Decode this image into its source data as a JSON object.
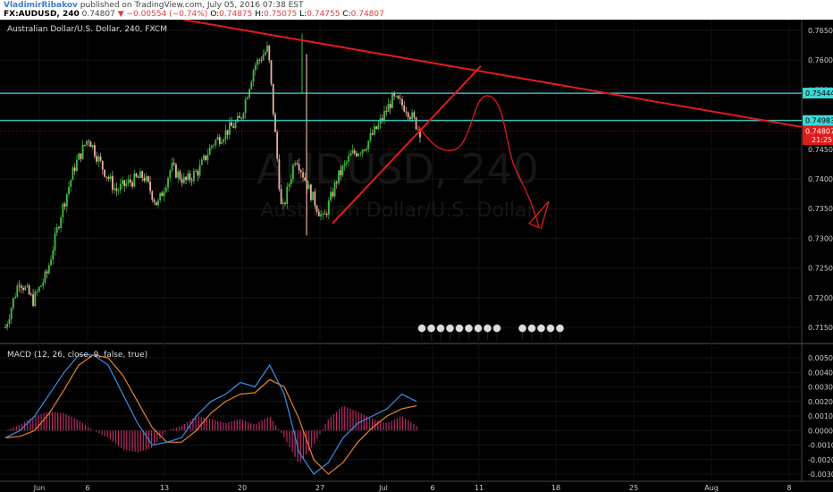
{
  "header": {
    "user": "VladimirRibakov",
    "published": "published on TradingView.com, July 05, 2016 07:38 EST",
    "symbol": "FX:AUDUSD, 240",
    "last": "0.74807",
    "change_arrow": "▼",
    "change": "−0.00554 (−0.74%)",
    "o_label": "O:",
    "o": "0.74875",
    "h_label": "H:",
    "h": "0.75075",
    "l_label": "L:",
    "l": "0.74755",
    "c_label": "C:",
    "c": "0.74807"
  },
  "chart_title": "Australian Dollar/U.S. Dollar, 240, FXCM",
  "macd_title": "MACD (12, 26, close, 9, false, true)",
  "watermark": {
    "big": "AUDUSD, 240",
    "small": "Australian Dollar/U.S. Dollar"
  },
  "colors": {
    "bg": "#000000",
    "up": "#3fbf3f",
    "down": "#e8b0a0",
    "hline": "#3dd9d6",
    "drawing": "#e31b1b",
    "macd": "#3b8fe8",
    "signal": "#e8822d",
    "hist": "#c0286a"
  },
  "chart_data": [
    {
      "type": "candlestick",
      "title": "Australian Dollar/U.S. Dollar, 240, FXCM",
      "ylim": [
        0.7125,
        0.7665
      ],
      "y_ticks": [
        "0.76500",
        "0.76000",
        "0.75500",
        "0.75000",
        "0.74500",
        "0.74000",
        "0.73500",
        "0.73000",
        "0.72500",
        "0.72000",
        "0.71500"
      ],
      "x_ticks": [
        "Jun",
        "6",
        "13",
        "20",
        "27",
        "Jul",
        "6",
        "11",
        "18",
        "25",
        "Aug",
        "8"
      ],
      "close_path": [
        [
          "Jun",
          0.715
        ],
        [
          "Jun 3",
          0.723
        ],
        [
          "Jun 4",
          0.7195
        ],
        [
          "6",
          0.724
        ],
        [
          "Jun 7",
          0.734
        ],
        [
          "Jun 8",
          0.742
        ],
        [
          "Jun 9",
          0.747
        ],
        [
          "Jun 10",
          0.742
        ],
        [
          "Jun 11",
          0.738
        ],
        [
          "13",
          0.7395
        ],
        [
          "Jun 14",
          0.7405
        ],
        [
          "Jun 15",
          0.7355
        ],
        [
          "Jun 16",
          0.742
        ],
        [
          "Jun 17",
          0.7395
        ],
        [
          "Jun 18",
          0.7415
        ],
        [
          "20",
          0.746
        ],
        [
          "Jun 21",
          0.748
        ],
        [
          "Jun 22",
          0.75
        ],
        [
          "Jun 23",
          0.759
        ],
        [
          "Jun 24",
          0.762
        ],
        [
          "Jun 24b",
          0.734
        ],
        [
          "Jun 25",
          0.744
        ],
        [
          "Jun 26",
          0.738
        ],
        [
          "27",
          0.733
        ],
        [
          "Jun 28",
          0.74
        ],
        [
          "Jun 29",
          0.744
        ],
        [
          "Jul",
          0.7455
        ],
        [
          "Jul 2",
          0.749
        ],
        [
          "Jul 3",
          0.7535
        ],
        [
          "Jul 4",
          0.752
        ],
        [
          "Jul 5",
          0.7481
        ]
      ],
      "horizontal_lines": [
        {
          "value": 0.75444,
          "label": "0.75444"
        },
        {
          "value": 0.74983,
          "label": "0.74983"
        }
      ],
      "price_labels": [
        {
          "value": 0.74807,
          "label": "0.74807"
        },
        {
          "value": 0.7466,
          "label": "21:25"
        }
      ],
      "drawings": [
        "resistance trendline",
        "support trendline",
        "projected price path"
      ]
    },
    {
      "type": "line",
      "title": "MACD (12, 26, close, 9, false, true)",
      "ylim": [
        -0.0035,
        0.0058
      ],
      "y_ticks": [
        "0.0050",
        "0.0040",
        "0.0030",
        "0.0020",
        "0.0010",
        "0.0000",
        "-0.0010",
        "-0.0020",
        "-0.0030"
      ],
      "series": [
        {
          "name": "MACD",
          "values": [
            -0.0005,
            0.0,
            0.001,
            0.0025,
            0.004,
            0.0052,
            0.0052,
            0.0045,
            0.0025,
            0.0005,
            -0.001,
            -0.0008,
            -0.0005,
            0.001,
            0.002,
            0.0025,
            0.0033,
            0.003,
            0.0045,
            0.0025,
            -0.0015,
            -0.003,
            -0.0022,
            -0.0005,
            0.0005,
            0.001,
            0.0015,
            0.0025,
            0.002
          ]
        },
        {
          "name": "Signal",
          "values": [
            -0.0005,
            -0.0004,
            0.0,
            0.0012,
            0.0028,
            0.0045,
            0.0052,
            0.005,
            0.0038,
            0.002,
            0.0002,
            -0.0008,
            -0.0008,
            0.0,
            0.0012,
            0.002,
            0.0025,
            0.0026,
            0.0035,
            0.003,
            0.0008,
            -0.002,
            -0.003,
            -0.0022,
            -0.0008,
            0.0002,
            0.001,
            0.0015,
            0.0017
          ]
        },
        {
          "name": "Histogram",
          "values": [
            0.0,
            0.0004,
            0.001,
            0.0013,
            0.0012,
            0.0007,
            0.0,
            -0.0005,
            -0.0013,
            -0.0015,
            -0.0012,
            0.0,
            0.0003,
            0.001,
            0.0008,
            0.0005,
            0.0008,
            0.0004,
            0.001,
            -0.0005,
            -0.0023,
            -0.001,
            0.0008,
            0.0017,
            0.0013,
            0.0008,
            0.0005,
            0.001,
            0.0003
          ]
        }
      ]
    }
  ]
}
